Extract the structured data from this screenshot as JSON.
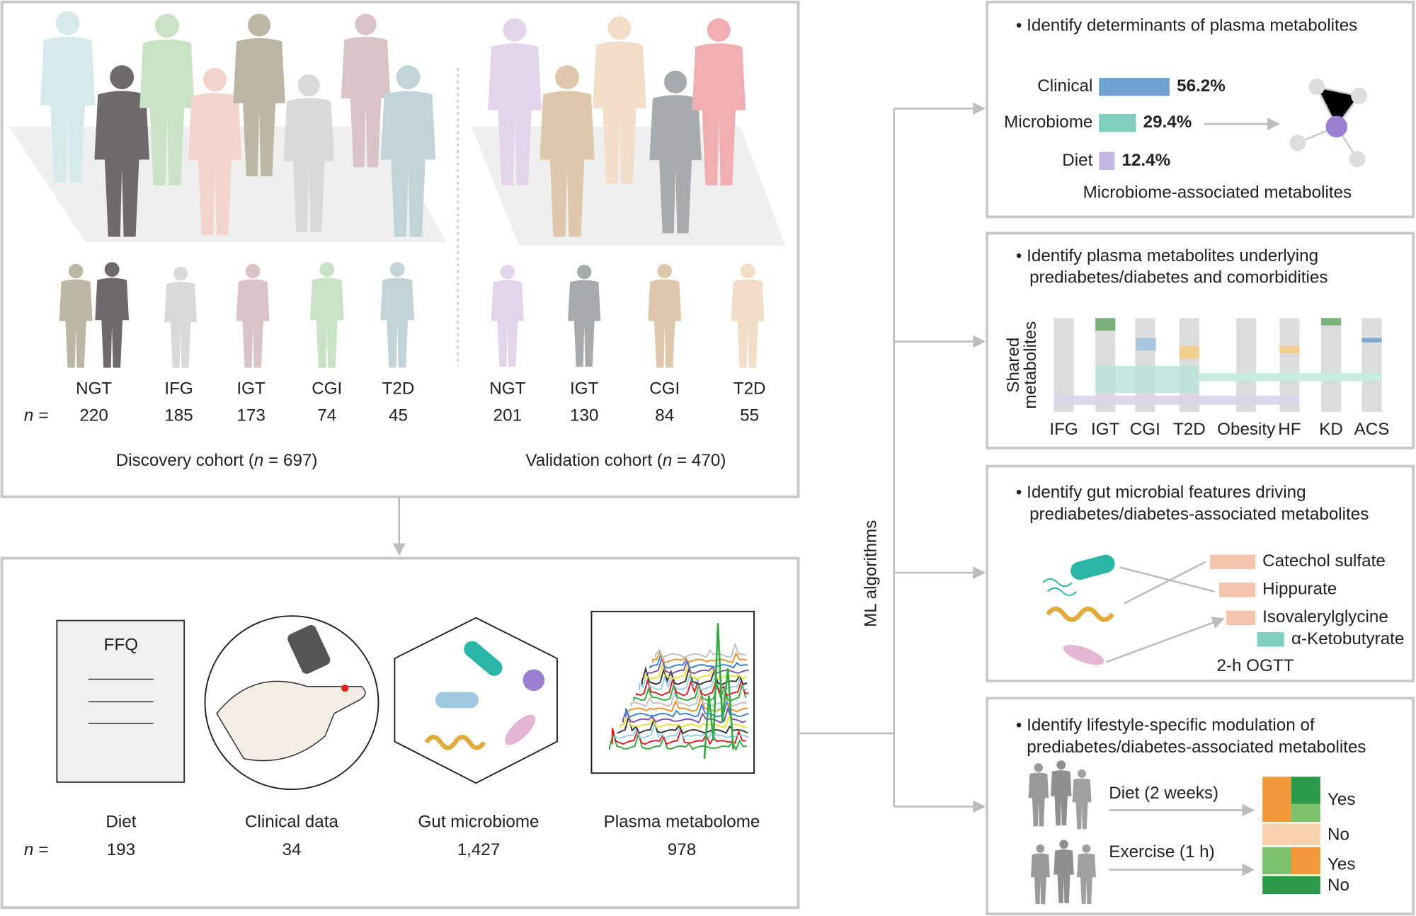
{
  "discovery": {
    "groups": [
      "NGT",
      "IFG",
      "IGT",
      "CGI",
      "T2D"
    ],
    "n": [
      "220",
      "185",
      "173",
      "74",
      "45"
    ],
    "n_label": "n =",
    "caption": "Discovery cohort (",
    "caption_n": "n",
    "caption_end": " = 697)"
  },
  "validation": {
    "groups": [
      "NGT",
      "IGT",
      "CGI",
      "T2D"
    ],
    "n": [
      "201",
      "130",
      "84",
      "55"
    ],
    "caption": "Validation cohort (",
    "caption_n": "n",
    "caption_end": " = 470)"
  },
  "data_types": {
    "ffq": "FFQ",
    "labels": [
      "Diet",
      "Clinical data",
      "Gut microbiome",
      "Plasma metabolome"
    ],
    "n": [
      "193",
      "34",
      "1,427",
      "978"
    ],
    "n_label": "n ="
  },
  "ml_label": "ML algorithms",
  "panel1": {
    "title": "• Identify determinants of plasma metabolites",
    "bars": [
      {
        "label": "Clinical",
        "value": 56.2,
        "value_label": "56.2%"
      },
      {
        "label": "Microbiome",
        "value": 29.4,
        "value_label": "29.4%"
      },
      {
        "label": "Diet",
        "value": 12.4,
        "value_label": "12.4%"
      }
    ],
    "caption": "Microbiome-associated metabolites"
  },
  "panel2": {
    "title": [
      "• Identify plasma metabolites underlying",
      "prediabetes/diabetes and comorbidities"
    ],
    "y_label": [
      "Shared",
      "metabolites"
    ],
    "columns": [
      "IFG",
      "IGT",
      "CGI",
      "T2D",
      "Obesity",
      "HF",
      "KD",
      "ACS"
    ]
  },
  "panel3": {
    "title": [
      "• Identify gut microbial features driving",
      "prediabetes/diabetes-associated metabolites"
    ],
    "metabolites": [
      "Catechol sulfate",
      "Hippurate",
      "Isovalerylglycine",
      "α-Ketobutyrate"
    ],
    "caption": "2-h OGTT"
  },
  "panel4": {
    "title": [
      "• Identify lifestyle-specific modulation of",
      "prediabetes/diabetes-associated metabolites"
    ],
    "interventions": [
      "Diet (2 weeks)",
      "Exercise (1 h)"
    ],
    "responses": [
      "Yes",
      "No",
      "Yes",
      "No"
    ]
  }
}
